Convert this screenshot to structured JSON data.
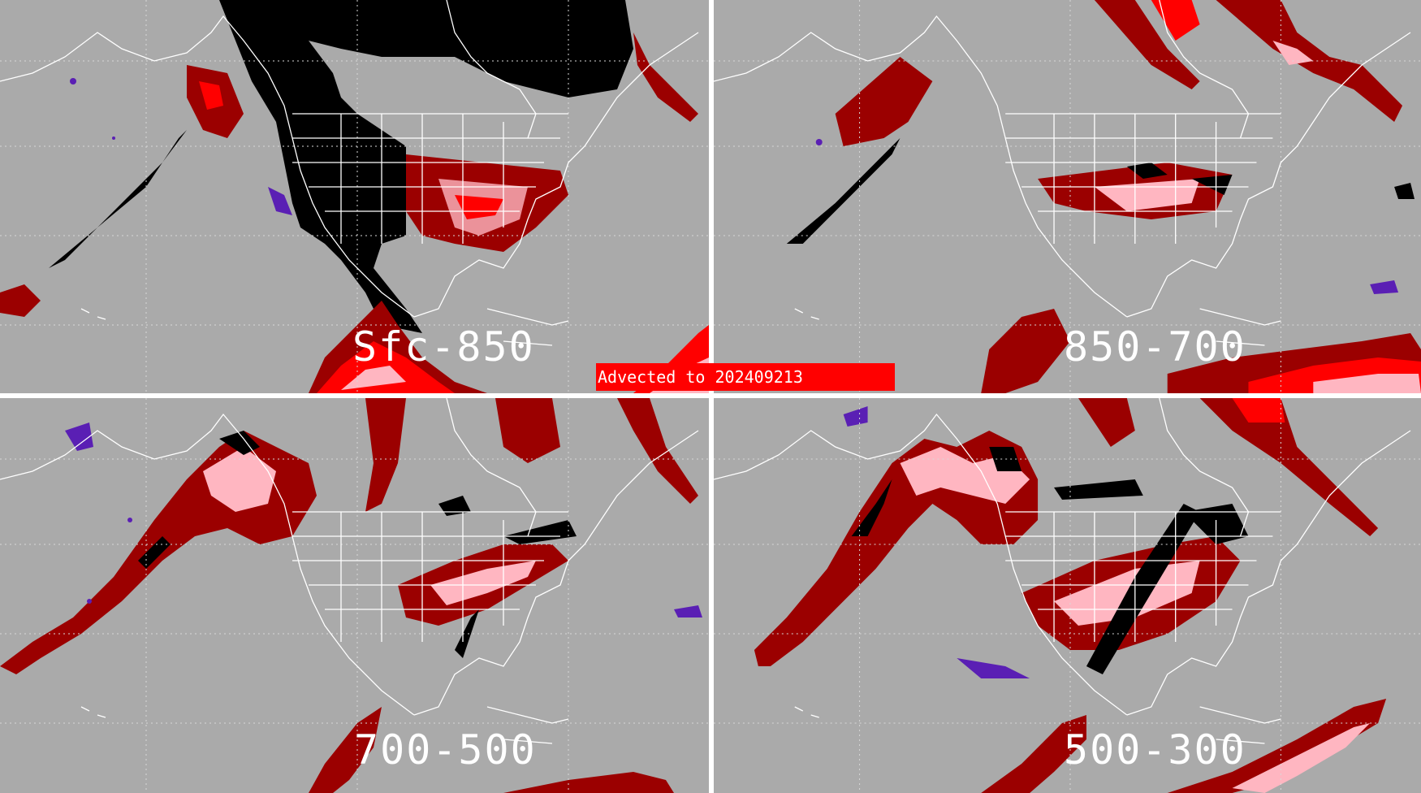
{
  "banner": {
    "text": "Advected to  202409213"
  },
  "colors": {
    "background": "#aaaaaa",
    "dark_red": "#9b0000",
    "red": "#ff0000",
    "pink": "#ffb6c1",
    "black": "#000000",
    "purple": "#5a1fb4",
    "boundaries": "#ffffff"
  },
  "panels": [
    {
      "id": "sfc-850",
      "label": "Sfc-850"
    },
    {
      "id": "850-700",
      "label": "850-700"
    },
    {
      "id": "700-500",
      "label": "700-500"
    },
    {
      "id": "500-300",
      "label": "500-300"
    }
  ]
}
